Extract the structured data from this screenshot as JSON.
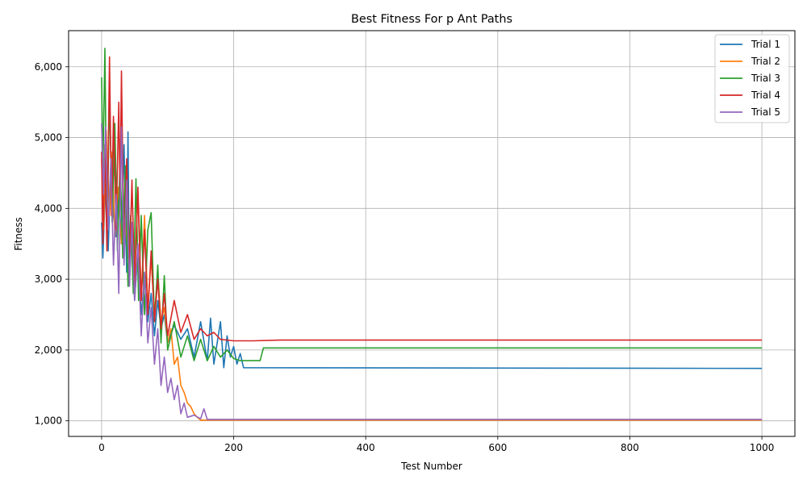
{
  "chart_data": {
    "type": "line",
    "title": "Best Fitness For p Ant Paths",
    "xlabel": "Test Number",
    "ylabel": "Fitness",
    "xlim": [
      -50,
      1050
    ],
    "ylim": [
      780,
      6510
    ],
    "xticks": [
      0,
      200,
      400,
      600,
      800,
      1000
    ],
    "xtick_labels": [
      "0",
      "200",
      "400",
      "600",
      "800",
      "1000"
    ],
    "yticks": [
      1000,
      2000,
      3000,
      4000,
      5000,
      6000
    ],
    "ytick_labels": [
      "1,000",
      "2,000",
      "3,000",
      "4,000",
      "5,000",
      "6,000"
    ],
    "grid": true,
    "legend_position": "top-right",
    "series": [
      {
        "name": "Trial 1",
        "color": "#1f77b4",
        "points": [
          [
            0,
            3800
          ],
          [
            2,
            3300
          ],
          [
            6,
            4400
          ],
          [
            10,
            3400
          ],
          [
            14,
            4600
          ],
          [
            18,
            3900
          ],
          [
            22,
            3600
          ],
          [
            26,
            4300
          ],
          [
            30,
            3500
          ],
          [
            34,
            4900
          ],
          [
            38,
            3100
          ],
          [
            40,
            5080
          ],
          [
            42,
            2900
          ],
          [
            46,
            3800
          ],
          [
            50,
            2700
          ],
          [
            55,
            3400
          ],
          [
            60,
            2500
          ],
          [
            65,
            3000
          ],
          [
            70,
            2400
          ],
          [
            75,
            2800
          ],
          [
            80,
            2200
          ],
          [
            85,
            2700
          ],
          [
            90,
            2300
          ],
          [
            95,
            2500
          ],
          [
            100,
            2100
          ],
          [
            110,
            2350
          ],
          [
            120,
            2150
          ],
          [
            130,
            2300
          ],
          [
            140,
            1900
          ],
          [
            150,
            2400
          ],
          [
            160,
            1850
          ],
          [
            165,
            2450
          ],
          [
            170,
            1800
          ],
          [
            180,
            2400
          ],
          [
            185,
            1750
          ],
          [
            190,
            2200
          ],
          [
            195,
            1900
          ],
          [
            200,
            2050
          ],
          [
            205,
            1800
          ],
          [
            210,
            1950
          ],
          [
            215,
            1750
          ],
          [
            1000,
            1740
          ]
        ]
      },
      {
        "name": "Trial 2",
        "color": "#ff7f0e",
        "points": [
          [
            0,
            4700
          ],
          [
            3,
            3700
          ],
          [
            7,
            5100
          ],
          [
            12,
            3900
          ],
          [
            16,
            4800
          ],
          [
            20,
            3600
          ],
          [
            25,
            4300
          ],
          [
            30,
            3500
          ],
          [
            35,
            4000
          ],
          [
            40,
            3300
          ],
          [
            45,
            3800
          ],
          [
            50,
            3100
          ],
          [
            55,
            4200
          ],
          [
            60,
            2700
          ],
          [
            65,
            3900
          ],
          [
            70,
            2600
          ],
          [
            75,
            3300
          ],
          [
            80,
            2500
          ],
          [
            85,
            3100
          ],
          [
            90,
            2400
          ],
          [
            95,
            2600
          ],
          [
            100,
            2100
          ],
          [
            105,
            2300
          ],
          [
            110,
            1800
          ],
          [
            115,
            1900
          ],
          [
            120,
            1500
          ],
          [
            125,
            1400
          ],
          [
            130,
            1250
          ],
          [
            135,
            1200
          ],
          [
            140,
            1100
          ],
          [
            145,
            1050
          ],
          [
            150,
            1010
          ],
          [
            1000,
            1010
          ]
        ]
      },
      {
        "name": "Trial 3",
        "color": "#2ca02c",
        "points": [
          [
            0,
            5850
          ],
          [
            2,
            4500
          ],
          [
            5,
            6260
          ],
          [
            8,
            3500
          ],
          [
            12,
            5600
          ],
          [
            16,
            3800
          ],
          [
            20,
            5200
          ],
          [
            24,
            3400
          ],
          [
            28,
            4700
          ],
          [
            32,
            3300
          ],
          [
            36,
            4600
          ],
          [
            40,
            2900
          ],
          [
            44,
            3900
          ],
          [
            48,
            2800
          ],
          [
            52,
            4420
          ],
          [
            56,
            2700
          ],
          [
            60,
            3900
          ],
          [
            65,
            2500
          ],
          [
            70,
            3700
          ],
          [
            75,
            3940
          ],
          [
            80,
            2400
          ],
          [
            85,
            3200
          ],
          [
            90,
            2100
          ],
          [
            95,
            3050
          ],
          [
            100,
            2000
          ],
          [
            110,
            2400
          ],
          [
            120,
            1900
          ],
          [
            130,
            2200
          ],
          [
            140,
            1850
          ],
          [
            150,
            2150
          ],
          [
            160,
            1850
          ],
          [
            170,
            2050
          ],
          [
            180,
            1900
          ],
          [
            190,
            2000
          ],
          [
            200,
            1880
          ],
          [
            210,
            1850
          ],
          [
            220,
            1850
          ],
          [
            230,
            1850
          ],
          [
            240,
            1850
          ],
          [
            245,
            2030
          ],
          [
            1000,
            2030
          ]
        ]
      },
      {
        "name": "Trial 4",
        "color": "#d62728",
        "points": [
          [
            0,
            4800
          ],
          [
            2,
            3500
          ],
          [
            5,
            4900
          ],
          [
            8,
            3400
          ],
          [
            12,
            6140
          ],
          [
            15,
            3900
          ],
          [
            18,
            5300
          ],
          [
            22,
            3700
          ],
          [
            26,
            5500
          ],
          [
            28,
            4100
          ],
          [
            30,
            5940
          ],
          [
            34,
            3300
          ],
          [
            38,
            4700
          ],
          [
            42,
            3100
          ],
          [
            46,
            4400
          ],
          [
            50,
            2900
          ],
          [
            55,
            4300
          ],
          [
            60,
            2700
          ],
          [
            65,
            3700
          ],
          [
            70,
            2500
          ],
          [
            75,
            3400
          ],
          [
            80,
            2400
          ],
          [
            85,
            3000
          ],
          [
            90,
            2300
          ],
          [
            95,
            2800
          ],
          [
            100,
            2200
          ],
          [
            110,
            2700
          ],
          [
            120,
            2250
          ],
          [
            130,
            2500
          ],
          [
            140,
            2150
          ],
          [
            150,
            2300
          ],
          [
            160,
            2200
          ],
          [
            170,
            2250
          ],
          [
            180,
            2150
          ],
          [
            200,
            2130
          ],
          [
            230,
            2130
          ],
          [
            270,
            2140
          ],
          [
            1000,
            2140
          ]
        ]
      },
      {
        "name": "Trial 5",
        "color": "#9467bd",
        "points": [
          [
            0,
            5200
          ],
          [
            3,
            4200
          ],
          [
            6,
            5150
          ],
          [
            10,
            3700
          ],
          [
            14,
            4700
          ],
          [
            18,
            3200
          ],
          [
            22,
            4200
          ],
          [
            26,
            2800
          ],
          [
            30,
            5150
          ],
          [
            34,
            3200
          ],
          [
            38,
            4400
          ],
          [
            42,
            2900
          ],
          [
            46,
            3800
          ],
          [
            50,
            2700
          ],
          [
            55,
            3500
          ],
          [
            60,
            2200
          ],
          [
            65,
            3100
          ],
          [
            70,
            2100
          ],
          [
            75,
            2600
          ],
          [
            80,
            1800
          ],
          [
            85,
            2300
          ],
          [
            90,
            1500
          ],
          [
            95,
            1900
          ],
          [
            100,
            1400
          ],
          [
            105,
            1600
          ],
          [
            110,
            1300
          ],
          [
            115,
            1500
          ],
          [
            120,
            1100
          ],
          [
            125,
            1250
          ],
          [
            130,
            1050
          ],
          [
            140,
            1080
          ],
          [
            150,
            1030
          ],
          [
            155,
            1170
          ],
          [
            160,
            1020
          ],
          [
            1000,
            1020
          ]
        ]
      }
    ]
  }
}
